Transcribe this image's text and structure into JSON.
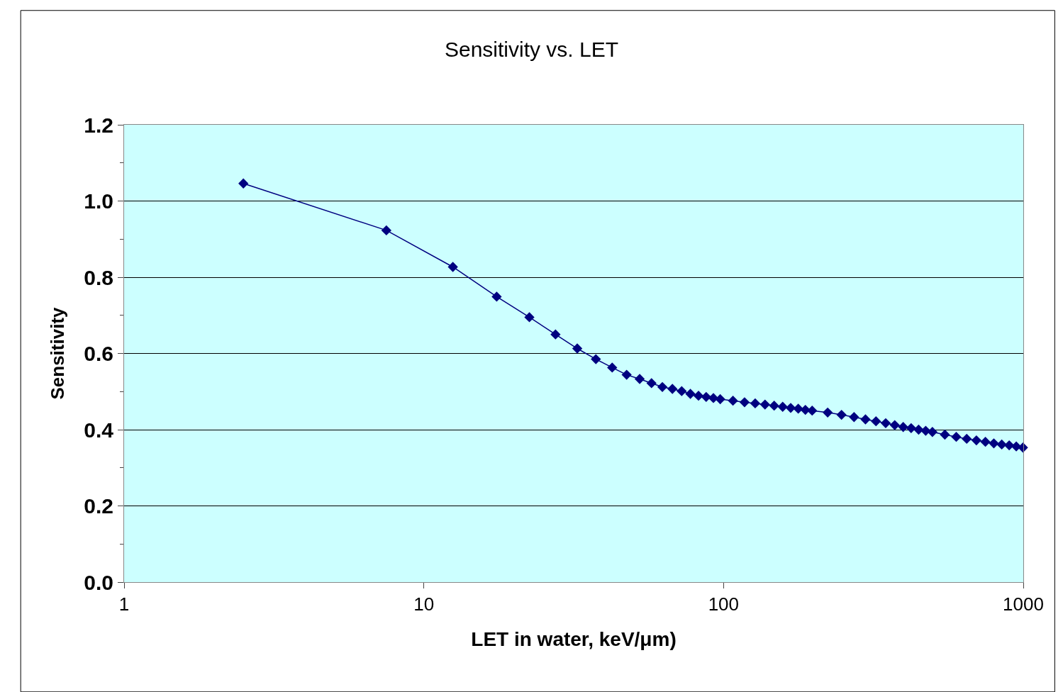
{
  "chart_data": {
    "type": "line",
    "title": "Sensitivity vs. LET",
    "xlabel": "LET in water, keV/μm)",
    "ylabel": "Sensitivity",
    "x": [
      2.5,
      7.5,
      12.5,
      17.5,
      22.5,
      27.5,
      32.5,
      37.5,
      42.5,
      47.5,
      52.5,
      57.5,
      62.5,
      67.5,
      72.5,
      77.5,
      82.5,
      87.5,
      92.5,
      97.5,
      107.5,
      117.5,
      127.5,
      137.5,
      147.5,
      157.5,
      167.5,
      177.5,
      187.5,
      197.5,
      222.5,
      247.5,
      272.5,
      297.5,
      322.5,
      347.5,
      372.5,
      397.5,
      422.5,
      447.5,
      472.5,
      497.5,
      547.5,
      597.5,
      647.5,
      697.5,
      747.5,
      797.5,
      847.5,
      897.5,
      947.5,
      997.5
    ],
    "series": [
      {
        "color": "#000080",
        "values": [
          1.046,
          0.923,
          0.827,
          0.749,
          0.695,
          0.65,
          0.613,
          0.585,
          0.563,
          0.544,
          0.533,
          0.522,
          0.512,
          0.507,
          0.501,
          0.494,
          0.489,
          0.486,
          0.483,
          0.48,
          0.476,
          0.472,
          0.469,
          0.466,
          0.463,
          0.46,
          0.457,
          0.455,
          0.452,
          0.45,
          0.445,
          0.439,
          0.433,
          0.427,
          0.422,
          0.417,
          0.412,
          0.407,
          0.404,
          0.4,
          0.397,
          0.394,
          0.387,
          0.381,
          0.376,
          0.372,
          0.368,
          0.364,
          0.361,
          0.359,
          0.356,
          0.353
        ]
      }
    ],
    "log": "x",
    "xlim": [
      1,
      1000
    ],
    "xticks": [
      1,
      10,
      100,
      1000
    ],
    "ylim": [
      0,
      1.2
    ],
    "yticks": [
      {
        "value": 0,
        "label": "0.0"
      },
      {
        "value": 0.2,
        "label": "0.2"
      },
      {
        "value": 0.4,
        "label": "0.4"
      },
      {
        "value": 0.6,
        "label": "0.6"
      },
      {
        "value": 0.8,
        "label": "0.8"
      },
      {
        "value": 1,
        "label": "1.0"
      },
      {
        "value": 1.2,
        "label": "1.2"
      }
    ],
    "grid": "y",
    "legend": false,
    "marker": "diamond",
    "line_style": "solid"
  }
}
